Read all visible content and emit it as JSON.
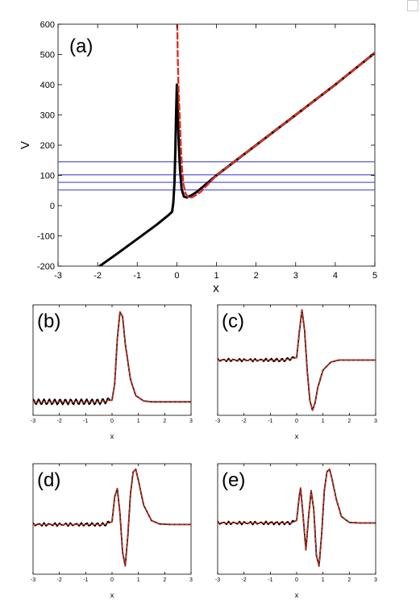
{
  "chart_data": [
    {
      "panel": "(a)",
      "type": "line",
      "xlabel": "x",
      "ylabel": "V",
      "xlim": [
        -3,
        5
      ],
      "ylim": [
        -200,
        600
      ],
      "xticks": [
        -3,
        -2,
        -1,
        0,
        1,
        2,
        3,
        4,
        5
      ],
      "yticks": [
        -200,
        -100,
        0,
        100,
        200,
        300,
        400,
        500,
        600
      ],
      "hlines": {
        "color": "#5a5ae6",
        "y": [
          52,
          77,
          102,
          145
        ]
      },
      "series": [
        {
          "style": "solid",
          "color": "#000000",
          "x": [
            -1.95,
            -1.5,
            -1.0,
            -0.5,
            -0.2,
            -0.12,
            -0.09,
            -0.06,
            -0.04,
            -0.02,
            0.0,
            0.02,
            0.05,
            0.08,
            0.12,
            0.18,
            0.25,
            0.35,
            0.5,
            1.0,
            2.0,
            3.0,
            4.0,
            5.0
          ],
          "y": [
            -200,
            -158,
            -110,
            -62,
            -30,
            -20,
            10,
            75,
            170,
            300,
            400,
            320,
            200,
            120,
            55,
            30,
            27,
            33,
            45,
            100,
            200,
            300,
            400,
            505
          ]
        },
        {
          "style": "dashed",
          "color": "#e0301e",
          "x": [
            0.01,
            0.02,
            0.04,
            0.07,
            0.1,
            0.13,
            0.17,
            0.22,
            0.3,
            0.4,
            0.6,
            1.0,
            2.0,
            3.0,
            4.0,
            5.0
          ],
          "y": [
            600,
            500,
            400,
            300,
            200,
            120,
            70,
            40,
            26,
            28,
            45,
            100,
            200,
            300,
            400,
            505
          ]
        }
      ]
    },
    {
      "panel": "(b)",
      "type": "line",
      "xlabel": "x",
      "xlim": [
        -3,
        3
      ],
      "xticks": [
        -3,
        -2,
        -1,
        0,
        1,
        2,
        3
      ],
      "series": [
        {
          "style": "solid",
          "color": "#000000",
          "x": [
            -3,
            -2.5,
            -2,
            -1.5,
            -1,
            -0.5,
            0,
            0.1,
            0.2,
            0.3,
            0.4,
            0.5,
            0.7,
            0.9,
            1.2,
            1.5,
            2,
            3
          ],
          "y": [
            0,
            0,
            0,
            0,
            0,
            0,
            0.02,
            0.2,
            0.7,
            1.0,
            0.95,
            0.65,
            0.25,
            0.07,
            0.01,
            0,
            0,
            0
          ]
        },
        {
          "style": "dashed",
          "color": "#e0301e",
          "x": [
            -3,
            -2.5,
            -2,
            -1.5,
            -1,
            -0.5,
            0,
            0.1,
            0.2,
            0.3,
            0.4,
            0.5,
            0.7,
            0.9,
            1.2,
            1.5,
            2,
            3
          ],
          "y": [
            0,
            0,
            0,
            0,
            0,
            0,
            0.02,
            0.2,
            0.7,
            1.0,
            0.95,
            0.65,
            0.25,
            0.07,
            0.01,
            0,
            0,
            0
          ]
        }
      ]
    },
    {
      "panel": "(c)",
      "type": "line",
      "xlabel": "x",
      "xlim": [
        -3,
        3
      ],
      "xticks": [
        -3,
        -2,
        -1,
        0,
        1,
        2,
        3
      ],
      "series": [
        {
          "style": "solid",
          "color": "#000000",
          "x": [
            -3,
            -2,
            -1,
            -0.5,
            0,
            0.1,
            0.2,
            0.3,
            0.4,
            0.5,
            0.6,
            0.7,
            0.8,
            1.0,
            1.3,
            1.6,
            2,
            3
          ],
          "y": [
            0,
            0,
            0,
            0,
            0.05,
            0.55,
            1.0,
            0.6,
            -0.2,
            -0.8,
            -1.0,
            -0.85,
            -0.55,
            -0.2,
            -0.04,
            0,
            0,
            0
          ]
        },
        {
          "style": "dashed",
          "color": "#e0301e",
          "x": [
            -3,
            -2,
            -1,
            -0.5,
            0,
            0.1,
            0.2,
            0.3,
            0.4,
            0.5,
            0.6,
            0.7,
            0.8,
            1.0,
            1.3,
            1.6,
            2,
            3
          ],
          "y": [
            0,
            0,
            0,
            0,
            0.05,
            0.55,
            1.0,
            0.6,
            -0.2,
            -0.8,
            -1.0,
            -0.85,
            -0.55,
            -0.2,
            -0.04,
            0,
            0,
            0
          ]
        }
      ]
    },
    {
      "panel": "(d)",
      "type": "line",
      "xlabel": "x",
      "xlim": [
        -3,
        3
      ],
      "xticks": [
        -3,
        -2,
        -1,
        0,
        1,
        2,
        3
      ],
      "series": [
        {
          "style": "solid",
          "color": "#000000",
          "x": [
            -3,
            -2,
            -1,
            -0.3,
            0,
            0.1,
            0.2,
            0.3,
            0.4,
            0.5,
            0.6,
            0.7,
            0.8,
            0.9,
            1.0,
            1.2,
            1.5,
            1.8,
            2.2,
            3
          ],
          "y": [
            0,
            0,
            0,
            0,
            0.05,
            0.5,
            0.65,
            0.2,
            -0.5,
            -0.75,
            -0.2,
            0.55,
            0.95,
            1.0,
            0.8,
            0.35,
            0.07,
            0.01,
            0,
            0
          ]
        },
        {
          "style": "dashed",
          "color": "#e0301e",
          "x": [
            -3,
            -2,
            -1,
            -0.3,
            0,
            0.1,
            0.2,
            0.3,
            0.4,
            0.5,
            0.6,
            0.7,
            0.8,
            0.9,
            1.0,
            1.2,
            1.5,
            1.8,
            2.2,
            3
          ],
          "y": [
            0,
            0,
            0,
            0,
            0.05,
            0.5,
            0.65,
            0.2,
            -0.5,
            -0.75,
            -0.2,
            0.55,
            0.95,
            1.0,
            0.8,
            0.35,
            0.07,
            0.01,
            0,
            0
          ]
        }
      ]
    },
    {
      "panel": "(e)",
      "type": "line",
      "xlabel": "x",
      "xlim": [
        -3,
        3
      ],
      "xticks": [
        -3,
        -2,
        -1,
        0,
        1,
        2,
        3
      ],
      "series": [
        {
          "style": "solid",
          "color": "#000000",
          "x": [
            -3,
            -2,
            -1,
            -0.2,
            0,
            0.1,
            0.15,
            0.25,
            0.35,
            0.45,
            0.55,
            0.65,
            0.75,
            0.85,
            0.95,
            1.05,
            1.15,
            1.25,
            1.35,
            1.5,
            1.7,
            2.0,
            2.4,
            3
          ],
          "y": [
            0,
            0,
            0,
            0,
            0.05,
            0.5,
            0.65,
            0.1,
            -0.5,
            0.1,
            0.6,
            0.25,
            -0.6,
            -0.8,
            -0.2,
            0.6,
            0.95,
            1.0,
            0.8,
            0.45,
            0.12,
            0.01,
            0,
            0
          ]
        },
        {
          "style": "dashed",
          "color": "#e0301e",
          "x": [
            -3,
            -2,
            -1,
            -0.2,
            0,
            0.1,
            0.15,
            0.25,
            0.35,
            0.45,
            0.55,
            0.65,
            0.75,
            0.85,
            0.95,
            1.05,
            1.15,
            1.25,
            1.35,
            1.5,
            1.7,
            2.0,
            2.4,
            3
          ],
          "y": [
            0,
            0,
            0,
            0,
            0.05,
            0.5,
            0.65,
            0.1,
            -0.5,
            0.1,
            0.6,
            0.25,
            -0.6,
            -0.8,
            -0.2,
            0.6,
            0.95,
            1.0,
            0.8,
            0.45,
            0.12,
            0.01,
            0,
            0
          ]
        }
      ]
    }
  ]
}
